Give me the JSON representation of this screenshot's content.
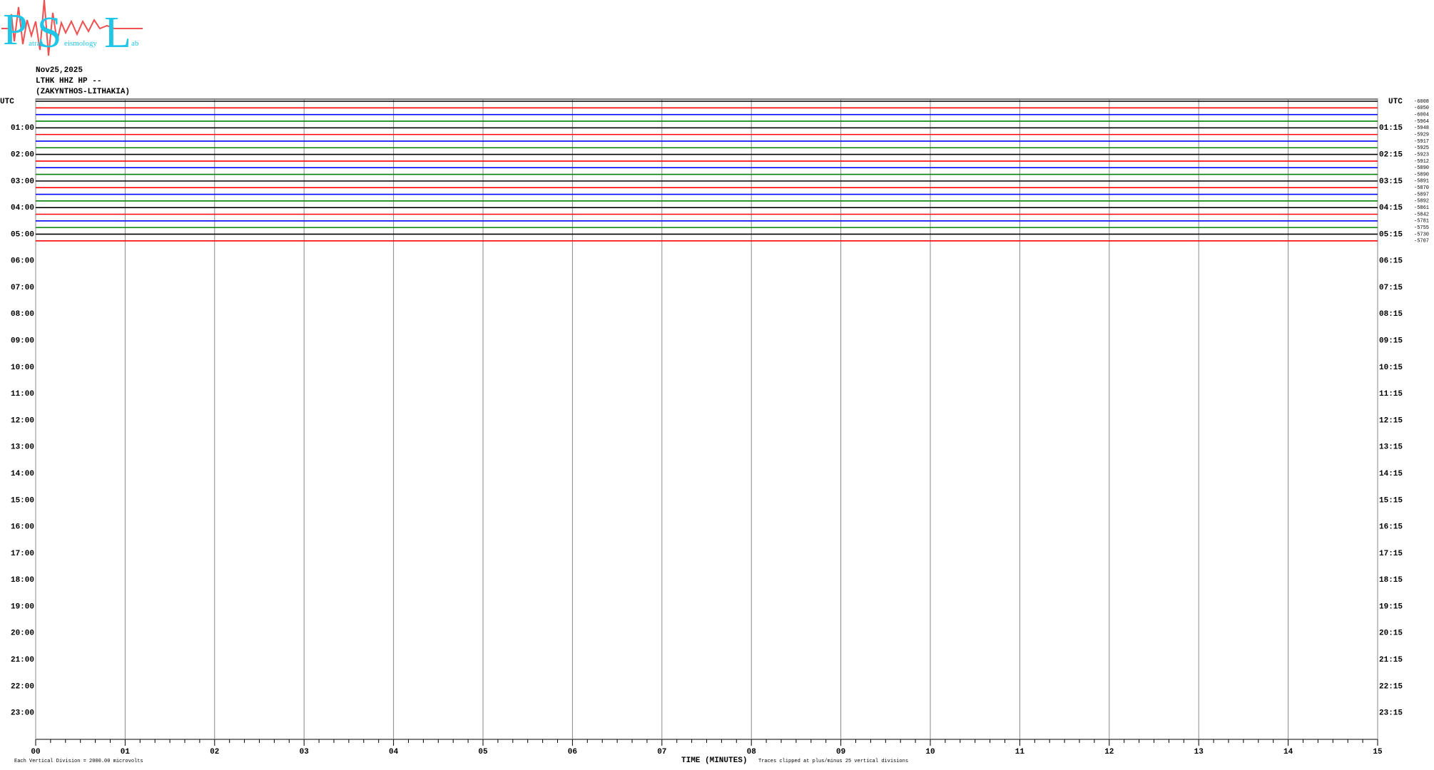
{
  "logo": {
    "letters": [
      "P",
      "S",
      "L"
    ],
    "words": [
      "atras",
      "eismology",
      "ab"
    ]
  },
  "chart_data": {
    "type": "helicorder",
    "date": "Nov25,2025",
    "station": "LTHK HHZ HP --",
    "location": "(ZAKYNTHOS-LITHAKIA)",
    "left_axis_title": "UTC",
    "right_axis_title": "UTC",
    "row_labels_left": [
      "01:00",
      "02:00",
      "03:00",
      "04:00",
      "05:00",
      "06:00",
      "07:00",
      "08:00",
      "09:00",
      "10:00",
      "11:00",
      "12:00",
      "13:00",
      "14:00",
      "15:00",
      "16:00",
      "17:00",
      "18:00",
      "19:00",
      "20:00",
      "21:00",
      "22:00",
      "23:00"
    ],
    "row_labels_right": [
      "01:15",
      "02:15",
      "03:15",
      "04:15",
      "05:15",
      "06:15",
      "07:15",
      "08:15",
      "09:15",
      "10:15",
      "11:15",
      "12:15",
      "13:15",
      "14:15",
      "15:15",
      "16:15",
      "17:15",
      "18:15",
      "19:15",
      "20:15",
      "21:15",
      "22:15",
      "23:15"
    ],
    "trace_colors": [
      "#000000",
      "#ff0000",
      "#0000ff",
      "#008000"
    ],
    "trace_offsets": [
      -6008,
      -6050,
      -6004,
      -5964,
      -5948,
      -5929,
      -5917,
      -5925,
      -5923,
      -5912,
      -5890,
      -5890,
      -5891,
      -5870,
      -5897,
      -5892,
      -5861,
      -5842,
      -5781,
      -5755,
      -5730,
      -5707
    ],
    "xlim": [
      0,
      15
    ],
    "xticks": [
      {
        "value": 0,
        "label": "00"
      },
      {
        "value": 1,
        "label": "01"
      },
      {
        "value": 2,
        "label": "02"
      },
      {
        "value": 3,
        "label": "03"
      },
      {
        "value": 4,
        "label": "04"
      },
      {
        "value": 5,
        "label": "05"
      },
      {
        "value": 6,
        "label": "06"
      },
      {
        "value": 7,
        "label": "07"
      },
      {
        "value": 8,
        "label": "08"
      },
      {
        "value": 9,
        "label": "09"
      },
      10,
      11,
      12,
      13,
      14,
      15
    ],
    "xlabel": "TIME (MINUTES)",
    "scale_note": "Each Vertical Division = 2000.00 microvolts",
    "clip_note": "Traces clipped at plus/minus 25 vertical divisions"
  }
}
